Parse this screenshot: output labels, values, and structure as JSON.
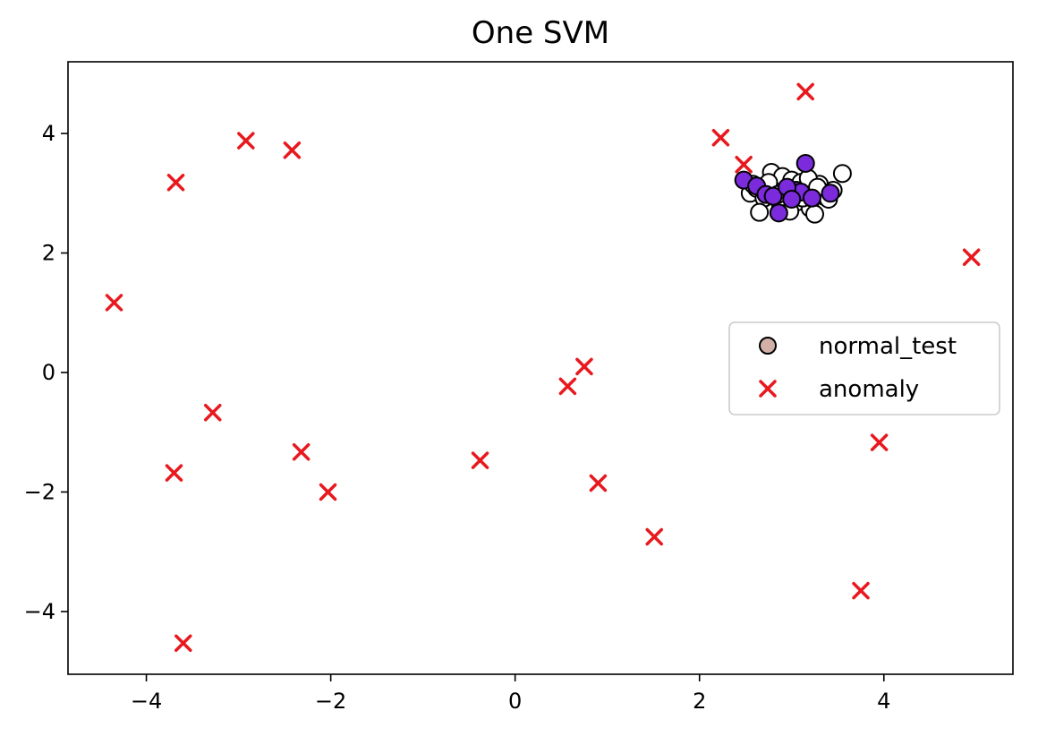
{
  "chart_data": {
    "type": "scatter",
    "title": "One SVM",
    "xlabel": "",
    "ylabel": "",
    "xlim": [
      -4.85,
      5.4
    ],
    "ylim": [
      -5.05,
      5.2
    ],
    "xticks": [
      -4,
      -2,
      0,
      2,
      4
    ],
    "yticks": [
      -4,
      -2,
      0,
      2,
      4
    ],
    "xtick_labels": [
      "−4",
      "−2",
      "0",
      "2",
      "4"
    ],
    "ytick_labels": [
      "−4",
      "−2",
      "0",
      "2",
      "4"
    ],
    "grid": false,
    "legend_placement": "center-right",
    "series": [
      {
        "name": "normal_test",
        "marker": "circle",
        "face_color": "#d2b0a8",
        "edge_color": "#000000",
        "show_in_legend": true,
        "points": []
      },
      {
        "name": "",
        "marker": "circle",
        "face_color": "#ffffff",
        "edge_color": "#000000",
        "show_in_legend": false,
        "points": [
          [
            2.55,
            3.0
          ],
          [
            2.62,
            3.08
          ],
          [
            2.7,
            2.92
          ],
          [
            2.78,
            3.35
          ],
          [
            2.82,
            3.1
          ],
          [
            2.9,
            3.28
          ],
          [
            2.95,
            2.95
          ],
          [
            3.0,
            3.22
          ],
          [
            3.05,
            2.85
          ],
          [
            3.1,
            3.18
          ],
          [
            3.15,
            3.05
          ],
          [
            3.2,
            2.75
          ],
          [
            3.25,
            2.65
          ],
          [
            3.3,
            3.15
          ],
          [
            3.35,
            2.95
          ],
          [
            3.4,
            2.9
          ],
          [
            3.45,
            3.05
          ],
          [
            3.55,
            3.33
          ],
          [
            2.65,
            2.68
          ],
          [
            2.88,
            2.78
          ],
          [
            3.02,
            3.0
          ],
          [
            2.75,
            3.18
          ],
          [
            3.18,
            3.25
          ],
          [
            2.98,
            2.7
          ],
          [
            3.12,
            2.92
          ],
          [
            2.58,
            3.15
          ],
          [
            3.28,
            3.1
          ],
          [
            2.85,
            2.98
          ]
        ]
      },
      {
        "name": "",
        "marker": "circle",
        "face_color": "#7b2bdb",
        "edge_color": "#000000",
        "show_in_legend": false,
        "points": [
          [
            2.48,
            3.22
          ],
          [
            2.62,
            3.12
          ],
          [
            2.72,
            2.98
          ],
          [
            2.8,
            2.95
          ],
          [
            2.86,
            2.67
          ],
          [
            3.05,
            3.05
          ],
          [
            3.1,
            3.02
          ],
          [
            3.15,
            3.5
          ],
          [
            3.22,
            2.92
          ],
          [
            3.42,
            3.0
          ],
          [
            2.95,
            3.1
          ],
          [
            3.0,
            2.9
          ]
        ]
      },
      {
        "name": "anomaly",
        "marker": "x",
        "color": "#e8191e",
        "show_in_legend": true,
        "points": [
          [
            -4.35,
            1.17
          ],
          [
            -3.68,
            3.18
          ],
          [
            -3.7,
            -1.68
          ],
          [
            -3.6,
            -4.53
          ],
          [
            -3.28,
            -0.67
          ],
          [
            -2.92,
            3.88
          ],
          [
            -2.42,
            3.72
          ],
          [
            -2.32,
            -1.33
          ],
          [
            -2.03,
            -2.0
          ],
          [
            -0.38,
            -1.47
          ],
          [
            0.57,
            -0.23
          ],
          [
            0.75,
            0.1
          ],
          [
            0.9,
            -1.85
          ],
          [
            1.51,
            -2.75
          ],
          [
            2.23,
            3.93
          ],
          [
            2.48,
            3.48
          ],
          [
            3.15,
            4.7
          ],
          [
            3.75,
            -3.65
          ],
          [
            3.95,
            -1.17
          ],
          [
            4.95,
            1.93
          ]
        ]
      }
    ]
  }
}
